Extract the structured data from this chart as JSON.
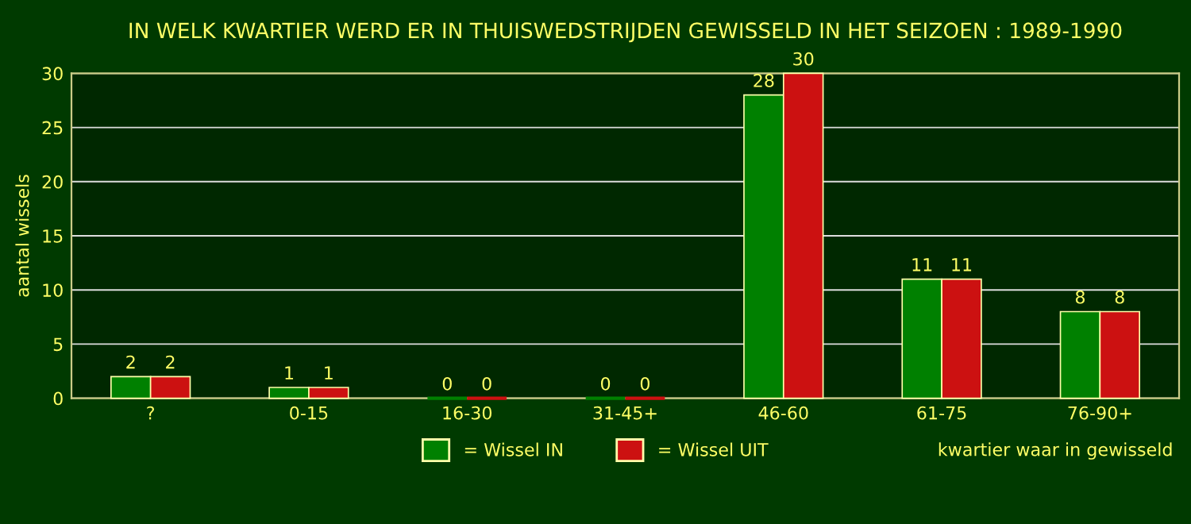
{
  "chart_data": {
    "type": "bar",
    "title": "IN WELK KWARTIER WERD ER IN THUISWEDSTRIJDEN GEWISSELD IN HET SEIZOEN : 1989-1990",
    "categories": [
      "?",
      "0-15",
      "16-30",
      "31-45+",
      "46-60",
      "61-75",
      "76-90+"
    ],
    "series": [
      {
        "name": "= Wissel IN",
        "color": "#008000",
        "values": [
          2,
          1,
          0,
          0,
          28,
          11,
          8
        ]
      },
      {
        "name": "= Wissel UIT",
        "color": "#cc1111",
        "values": [
          2,
          1,
          0,
          0,
          30,
          11,
          8
        ]
      }
    ],
    "ylabel": "aantal wissels",
    "xlabel": "kwartier waar in gewisseld",
    "ylim": [
      0,
      30
    ],
    "yticks": [
      0,
      5,
      10,
      15,
      20,
      25,
      30
    ],
    "grid": "y",
    "legend": "bottom",
    "data_labels": true
  }
}
